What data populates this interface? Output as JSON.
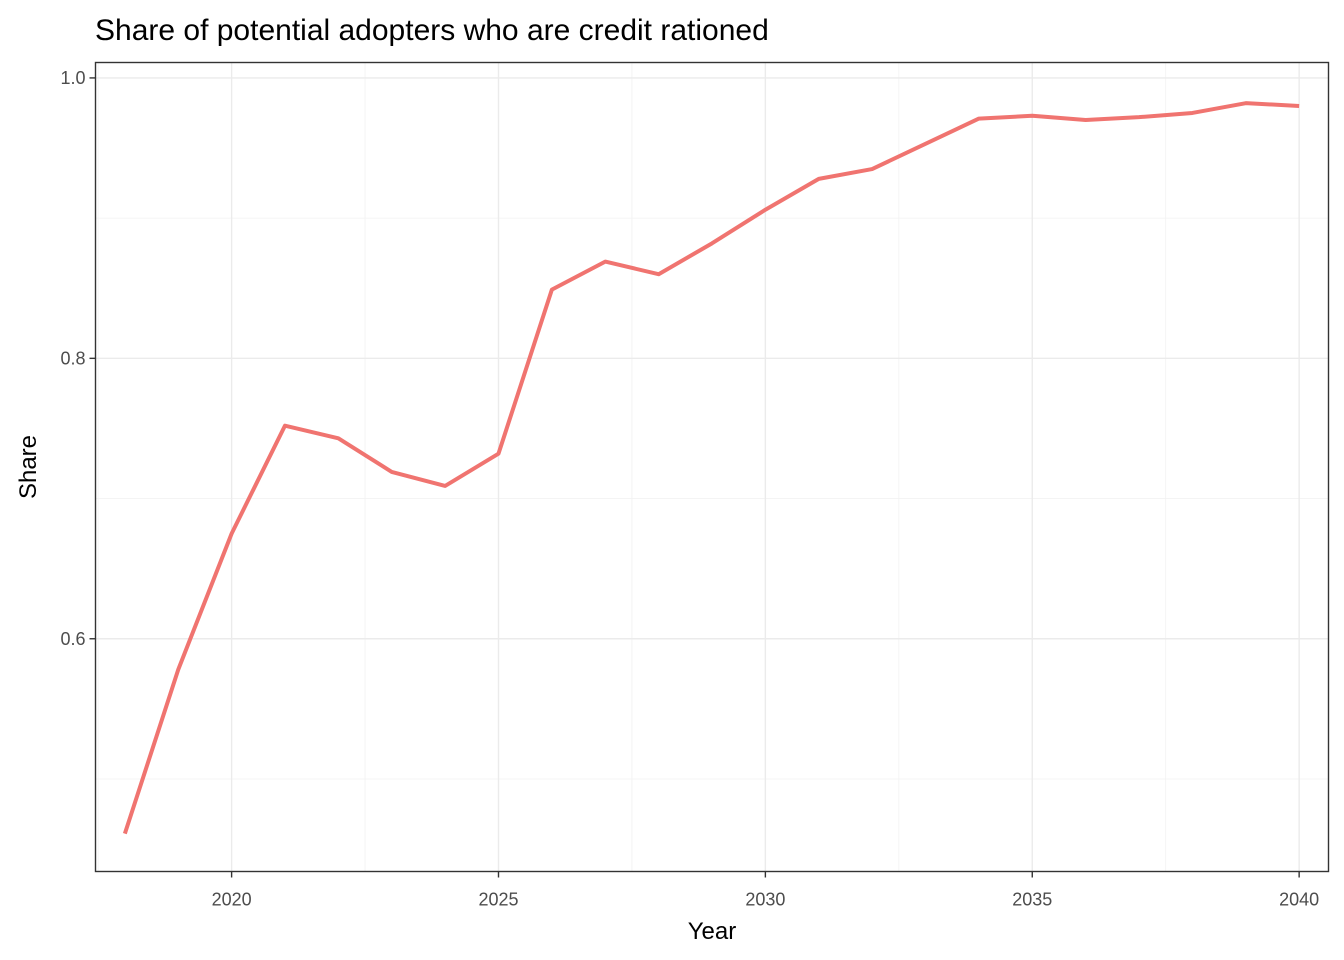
{
  "chart_data": {
    "type": "line",
    "title": "Share of potential adopters who are credit rationed",
    "xlabel": "Year",
    "ylabel": "Share",
    "xlim": [
      2017.45,
      2040.55
    ],
    "ylim": [
      0.434,
      1.011
    ],
    "x_ticks": [
      2020,
      2025,
      2030,
      2035,
      2040
    ],
    "x_minor_ticks": [
      2017.5,
      2022.5,
      2027.5,
      2032.5,
      2037.5
    ],
    "y_ticks": [
      0.6,
      0.8,
      1.0
    ],
    "y_tick_labels": [
      "0.6",
      "0.8",
      "1.0"
    ],
    "y_minor_ticks": [
      0.5,
      0.7,
      0.9
    ],
    "grid": true,
    "legend": "none",
    "series": [
      {
        "color": "#f07470",
        "x": [
          2018,
          2019,
          2020,
          2021,
          2022,
          2023,
          2024,
          2025,
          2026,
          2027,
          2028,
          2029,
          2030,
          2031,
          2032,
          2033,
          2034,
          2035,
          2036,
          2037,
          2038,
          2039,
          2040
        ],
        "values": [
          0.461,
          0.578,
          0.675,
          0.752,
          0.743,
          0.719,
          0.709,
          0.732,
          0.849,
          0.869,
          0.86,
          0.882,
          0.906,
          0.928,
          0.935,
          0.953,
          0.971,
          0.973,
          0.97,
          0.972,
          0.975,
          0.982,
          0.98
        ]
      }
    ]
  }
}
